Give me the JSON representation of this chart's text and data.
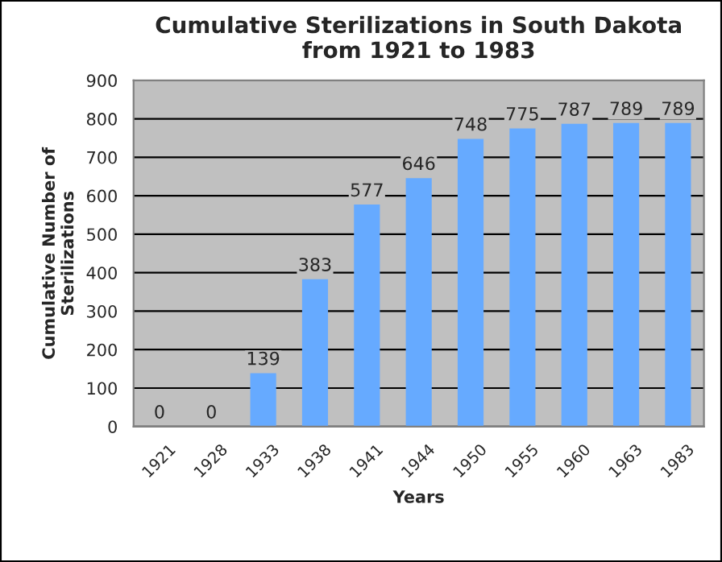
{
  "chart_data": {
    "type": "bar",
    "title": "Cumulative Sterilizations in South Dakota\nfrom 1921 to 1983",
    "xlabel": "Years",
    "ylabel": "Cumulative Number of\nSterilizations",
    "categories": [
      "1921",
      "1928",
      "1933",
      "1938",
      "1941",
      "1944",
      "1950",
      "1955",
      "1960",
      "1963",
      "1983"
    ],
    "values": [
      0,
      0,
      139,
      383,
      577,
      646,
      748,
      775,
      787,
      789,
      789
    ],
    "color": "#66aaff",
    "ylim": [
      0,
      900
    ],
    "yticks": [
      0,
      100,
      200,
      300,
      400,
      500,
      600,
      700,
      800,
      900
    ],
    "grid": "y",
    "data_labels": true
  }
}
